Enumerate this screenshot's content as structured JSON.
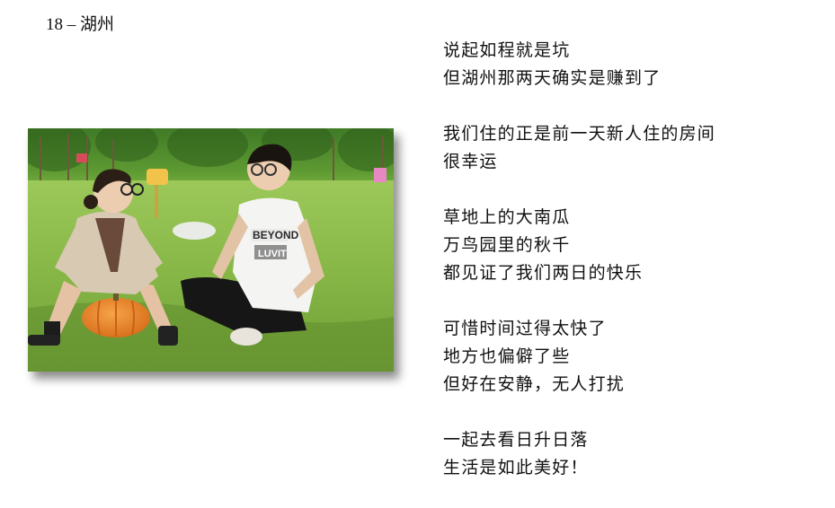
{
  "page": {
    "title": "18 – 湖州"
  },
  "photo": {
    "shirt_text_line1": "BEYOND",
    "shirt_text_line2": "LUVIT"
  },
  "poem": {
    "stanzas": [
      {
        "lines": [
          "说起如程就是坑",
          "但湖州那两天确实是赚到了"
        ]
      },
      {
        "lines": [
          "我们住的正是前一天新人住的房间",
          "很幸运"
        ]
      },
      {
        "lines": [
          "草地上的大南瓜",
          "万鸟园里的秋千",
          "都见证了我们两日的快乐"
        ]
      },
      {
        "lines": [
          "可惜时间过得太快了",
          "地方也偏僻了些",
          "但好在安静，无人打扰"
        ]
      },
      {
        "lines": [
          "一起去看日升日落",
          "生活是如此美好！"
        ]
      }
    ]
  },
  "colors": {
    "grass": "#7fae43",
    "trees": "#4e8a2e",
    "pumpkin": "#e8852a",
    "text": "#111111"
  }
}
